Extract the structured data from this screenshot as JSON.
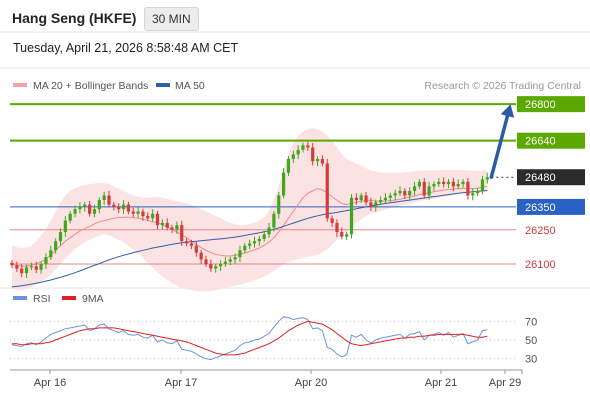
{
  "header": {
    "title": "Hang Seng (HKFE)",
    "timeframe": "30 MIN",
    "datetime": "Tuesday, April 21, 2026 8:58:48 AM CET"
  },
  "legend": {
    "bollinger": "MA 20 + Bollinger Bands",
    "ma50": "MA 50",
    "credit": "Research © 2026 Trading Central",
    "rsi": "RSI",
    "rsi_ma": "9MA"
  },
  "colors": {
    "resistance": "#5aa800",
    "pivot": "#2962c4",
    "support": "#e8868a",
    "last": "#2b2b2b",
    "band": "#fcdede",
    "ma20": "#f08b8b",
    "ma50": "#2f5fa8",
    "bull": "#3fa61d",
    "bear": "#d53b3b",
    "rsi": "#6c93dc",
    "rsi_ma": "#e02020",
    "arrow": "#2b5aa8"
  },
  "chart_data": {
    "type": "candlestick",
    "instrument": "Hang Seng (HKFE)",
    "interval": "30 MIN",
    "x_ticks": [
      "Apr 16",
      "Apr 17",
      "Apr 20",
      "Apr 21",
      "Apr 29"
    ],
    "y_range": [
      26030,
      26840
    ],
    "levels": [
      {
        "value": 26800,
        "label": "26800",
        "kind": "resistance"
      },
      {
        "value": 26640,
        "label": "26640",
        "kind": "resistance"
      },
      {
        "value": 26480,
        "label": "26480",
        "kind": "last"
      },
      {
        "value": 26350,
        "label": "26350",
        "kind": "pivot"
      },
      {
        "value": 26250,
        "label": "26250",
        "kind": "support"
      },
      {
        "value": 26100,
        "label": "26100",
        "kind": "support"
      }
    ],
    "closes": [
      26095,
      26080,
      26060,
      26085,
      26090,
      26075,
      26100,
      26130,
      26160,
      26200,
      26240,
      26290,
      26320,
      26340,
      26350,
      26360,
      26320,
      26340,
      26380,
      26400,
      26360,
      26350,
      26340,
      26360,
      26330,
      26320,
      26330,
      26310,
      26300,
      26320,
      26270,
      26280,
      26260,
      26250,
      26270,
      26200,
      26190,
      26180,
      26150,
      26120,
      26100,
      26080,
      26090,
      26100,
      26110,
      26120,
      26130,
      26160,
      26180,
      26190,
      26200,
      26210,
      26230,
      26260,
      26320,
      26400,
      26500,
      26560,
      26580,
      26600,
      26620,
      26610,
      26550,
      26560,
      26540,
      26300,
      26280,
      26240,
      26220,
      26230,
      26390,
      26380,
      26400,
      26370,
      26350,
      26370,
      26380,
      26390,
      26400,
      26410,
      26420,
      26400,
      26420,
      26440,
      26460,
      26400,
      26440,
      26450,
      26460,
      26450,
      26460,
      26440,
      26450,
      26460,
      26400,
      26410,
      26420,
      26470,
      26480
    ],
    "ma20": [
      26100,
      26095,
      26090,
      26090,
      26095,
      26100,
      26110,
      26120,
      26140,
      26160,
      26180,
      26200,
      26215,
      26230,
      26245,
      26255,
      26265,
      26275,
      26285,
      26290,
      26295,
      26300,
      26303,
      26305,
      26305,
      26303,
      26300,
      26296,
      26290,
      26285,
      26280,
      26272,
      26262,
      26252,
      26240,
      26228,
      26215,
      26200,
      26185,
      26172,
      26160,
      26150,
      26142,
      26138,
      26135,
      26135,
      26138,
      26142,
      26148,
      26155,
      26162,
      26170,
      26182,
      26196,
      26215,
      26240,
      26270,
      26300,
      26330,
      26360,
      26390,
      26410,
      26420,
      26430,
      26425,
      26410,
      26395,
      26380,
      26365,
      26360,
      26365,
      26370,
      26375,
      26380,
      26378,
      26376,
      26375,
      26376,
      26378,
      26380,
      26384,
      26388,
      26392,
      26398,
      26404,
      26408,
      26412,
      26416,
      26420,
      26424,
      26426,
      26428,
      26430,
      26432,
      26430,
      26430,
      26432,
      26436,
      26440
    ],
    "bollinger_upper": [
      26180,
      26175,
      26170,
      26172,
      26180,
      26200,
      26225,
      26250,
      26290,
      26330,
      26370,
      26400,
      26420,
      26430,
      26440,
      26445,
      26450,
      26452,
      26455,
      26455,
      26450,
      26440,
      26430,
      26420,
      26410,
      26400,
      26395,
      26390,
      26390,
      26392,
      26395,
      26390,
      26385,
      26380,
      26375,
      26370,
      26365,
      26360,
      26350,
      26340,
      26330,
      26320,
      26310,
      26300,
      26290,
      26280,
      26275,
      26270,
      26270,
      26275,
      26280,
      26290,
      26305,
      26330,
      26380,
      26440,
      26520,
      26580,
      26630,
      26660,
      26680,
      26690,
      26695,
      26690,
      26680,
      26660,
      26640,
      26610,
      26580,
      26560,
      26550,
      26540,
      26530,
      26520,
      26510,
      26505,
      26500,
      26500,
      26500,
      26500,
      26500,
      26502,
      26504,
      26506,
      26508,
      26510,
      26510,
      26510,
      26510,
      26512,
      26512,
      26512,
      26512,
      26512,
      26510,
      26508,
      26508,
      26510,
      26512
    ],
    "bollinger_lower": [
      25990,
      25988,
      25986,
      25990,
      26000,
      26010,
      26020,
      26035,
      26055,
      26075,
      26100,
      26125,
      26145,
      26165,
      26180,
      26195,
      26205,
      26215,
      26225,
      26230,
      26225,
      26215,
      26205,
      26195,
      26180,
      26165,
      26145,
      26125,
      26105,
      26085,
      26065,
      26045,
      26030,
      26015,
      26005,
      25995,
      25990,
      25985,
      25982,
      25980,
      25980,
      25982,
      25985,
      25990,
      25995,
      26000,
      26005,
      26010,
      26015,
      26020,
      26028,
      26036,
      26045,
      26055,
      26070,
      26085,
      26100,
      26110,
      26115,
      26120,
      26125,
      26130,
      26135,
      26140,
      26150,
      26165,
      26185,
      26205,
      26225,
      26245,
      26265,
      26280,
      26295,
      26310,
      26320,
      26328,
      26334,
      26340,
      26345,
      26350,
      26355,
      26360,
      26365,
      26370,
      26375,
      26378,
      26382,
      26386,
      26390,
      26394,
      26398,
      26402,
      26406,
      26410,
      26410,
      26410,
      26412,
      26414,
      26418
    ],
    "ma50": [
      26000,
      26002,
      26005,
      26008,
      26012,
      26016,
      26020,
      26025,
      26030,
      26036,
      26042,
      26048,
      26055,
      26062,
      26070,
      26078,
      26086,
      26094,
      26102,
      26110,
      26118,
      26125,
      26132,
      26138,
      26144,
      26150,
      26155,
      26160,
      26165,
      26170,
      26174,
      26178,
      26182,
      26186,
      26190,
      26193,
      26196,
      26198,
      26200,
      26202,
      26204,
      26206,
      26208,
      26210,
      26212,
      26215,
      26218,
      26221,
      26225,
      26229,
      26233,
      26237,
      26241,
      26246,
      26252,
      26258,
      26265,
      26272,
      26279,
      26286,
      26293,
      26300,
      26306,
      26311,
      26316,
      26320,
      26323,
      26326,
      26330,
      26334,
      26338,
      26342,
      26346,
      26350,
      26354,
      26358,
      26362,
      26365,
      26368,
      26371,
      26374,
      26377,
      26380,
      26383,
      26386,
      26389,
      26392,
      26395,
      26398,
      26401,
      26404,
      26407,
      26410,
      26412,
      26414,
      26416,
      26418,
      26420,
      26422
    ],
    "projection": {
      "from": 26480,
      "to": 26800
    },
    "rsi_panel": {
      "y_ticks": [
        70,
        50,
        30
      ],
      "y_range": [
        20,
        80
      ],
      "rsi": [
        45,
        44,
        43,
        46,
        47,
        45,
        48,
        52,
        56,
        58,
        60,
        62,
        63,
        64,
        65,
        66,
        60,
        62,
        66,
        67,
        62,
        60,
        58,
        60,
        56,
        55,
        56,
        53,
        52,
        55,
        48,
        50,
        47,
        46,
        49,
        40,
        39,
        38,
        35,
        32,
        30,
        29,
        31,
        33,
        35,
        37,
        39,
        44,
        47,
        48,
        50,
        51,
        54,
        57,
        64,
        70,
        75,
        74,
        72,
        73,
        74,
        72,
        62,
        63,
        60,
        42,
        40,
        35,
        32,
        34,
        55,
        53,
        56,
        50,
        47,
        50,
        52,
        53,
        54,
        55,
        56,
        52,
        56,
        57,
        59,
        50,
        55,
        56,
        58,
        55,
        58,
        53,
        55,
        57,
        46,
        48,
        50,
        60,
        61
      ],
      "ma9": [
        46,
        46,
        45,
        45,
        46,
        46,
        46,
        47,
        48,
        50,
        52,
        54,
        56,
        58,
        60,
        61,
        62,
        62,
        63,
        63,
        63,
        63,
        62,
        61,
        60,
        59,
        58,
        57,
        56,
        55,
        54,
        53,
        52,
        51,
        50,
        49,
        48,
        46,
        44,
        42,
        40,
        38,
        36,
        35,
        34,
        34,
        34,
        35,
        36,
        38,
        40,
        42,
        44,
        46,
        49,
        52,
        56,
        60,
        63,
        66,
        68,
        70,
        69,
        68,
        67,
        64,
        61,
        57,
        53,
        49,
        46,
        45,
        44,
        45,
        46,
        47,
        48,
        49,
        50,
        51,
        52,
        52,
        53,
        53,
        54,
        54,
        55,
        55,
        56,
        56,
        56,
        56,
        56,
        56,
        55,
        54,
        53,
        53,
        54
      ]
    }
  }
}
